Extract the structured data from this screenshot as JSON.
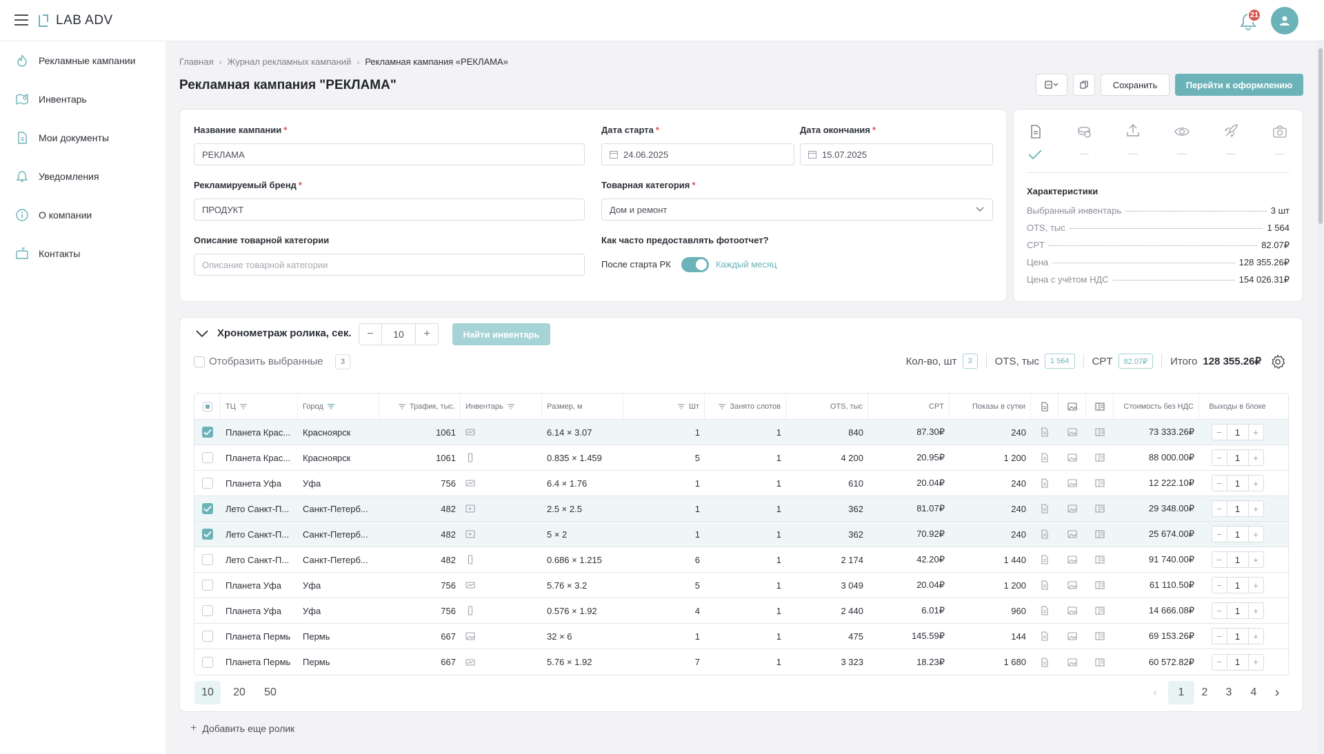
{
  "app": {
    "logo_text": "LAB ADV",
    "notifications_count": "21",
    "accent": "#6bb3b8"
  },
  "sidebar": {
    "items": [
      {
        "label": "Рекламные кампании",
        "icon": "flame-icon"
      },
      {
        "label": "Инвентарь",
        "icon": "map-icon"
      },
      {
        "label": "Мои документы",
        "icon": "document-icon"
      },
      {
        "label": "Уведомления",
        "icon": "bell-icon"
      },
      {
        "label": "О компании",
        "icon": "info-icon"
      },
      {
        "label": "Контакты",
        "icon": "mailbox-icon"
      }
    ]
  },
  "breadcrumb": [
    "Главная",
    "Журнал рекламных кампаний",
    "Рекламная кампания «РЕКЛАМА»"
  ],
  "page_title": "Рекламная кампания \"РЕКЛАМА\"",
  "toolbar": {
    "save_label": "Сохранить",
    "proceed_label": "Перейти к оформлению"
  },
  "form": {
    "campaign_name_label": "Название кампании",
    "campaign_name_value": "РЕКЛАМА",
    "start_label": "Дата старта",
    "start_value": "24.06.2025",
    "end_label": "Дата окончания",
    "end_value": "15.07.2025",
    "brand_label": "Рекламируемый бренд",
    "brand_value": "ПРОДУКТ",
    "category_label": "Товарная категория",
    "category_value": "Дом и ремонт",
    "desc_label": "Описание товарной категории",
    "desc_placeholder": "Описание товарной категории",
    "photo_question": "Как часто предоставлять фотоотчет?",
    "toggle_off_label": "После старта РК",
    "toggle_on_label": "Каждый месяц",
    "required_mark": "*"
  },
  "steps": [
    {
      "icon": "document-icon",
      "done": true,
      "mark": "✓"
    },
    {
      "icon": "coins-icon",
      "done": false,
      "mark": "—"
    },
    {
      "icon": "upload-icon",
      "done": false,
      "mark": "—"
    },
    {
      "icon": "eye-icon",
      "done": false,
      "mark": "—"
    },
    {
      "icon": "rocket-icon",
      "done": false,
      "mark": "—"
    },
    {
      "icon": "camera-icon",
      "done": false,
      "mark": "—"
    }
  ],
  "characteristics": {
    "title": "Характеристики",
    "rows": [
      {
        "key": "Выбранный инвентарь",
        "value": "3 шт"
      },
      {
        "key": "OTS, тыс",
        "value": "1 564"
      },
      {
        "key": "CPT",
        "value": "82.07₽"
      },
      {
        "key": "Цена",
        "value": "128 355.26₽"
      },
      {
        "key": "Цена с учётом НДС",
        "value": "154 026.31₽"
      }
    ]
  },
  "section": {
    "title": "Хронометраж ролика, сек.",
    "duration": "10",
    "find_label": "Найти инвентарь",
    "show_selected_label": "Отобразить выбранные",
    "show_selected_count": "3",
    "summary": {
      "qty_label": "Кол-во, шт",
      "qty_value": "3",
      "ots_label": "OTS, тыс",
      "ots_value": "1 564",
      "cpt_label": "CPT",
      "cpt_value": "82.07₽",
      "total_label": "Итого",
      "total_value": "128 355.26₽"
    }
  },
  "table": {
    "columns": [
      "ТЦ",
      "Город",
      "Трафик, тыс.",
      "Инвентарь",
      "Размер, м",
      "Шт",
      "Занято слотов",
      "OTS, тыс",
      "CPT",
      "Показы в сутки",
      "Стоимость без НДС",
      "Выходы в блоке"
    ],
    "rows": [
      {
        "selected": true,
        "mall": "Планета Крас...",
        "city": "Красноярск",
        "traffic": "1061",
        "inv": "screen-icon",
        "size": "6.14 × 3.07",
        "qty": "1",
        "slots": "1",
        "ots": "840",
        "cpt": "87.30₽",
        "shows": "240",
        "cost": "73 333.26₽",
        "outs": "1"
      },
      {
        "selected": false,
        "mall": "Планета Крас...",
        "city": "Красноярск",
        "traffic": "1061",
        "inv": "vertical-screen-icon",
        "size": "0.835 × 1.459",
        "qty": "5",
        "slots": "1",
        "ots": "4 200",
        "cpt": "20.95₽",
        "shows": "1 200",
        "cost": "88 000.00₽",
        "outs": "1"
      },
      {
        "selected": false,
        "mall": "Планета Уфа",
        "city": "Уфа",
        "traffic": "756",
        "inv": "screen-icon",
        "size": "6.4 × 1.76",
        "qty": "1",
        "slots": "1",
        "ots": "610",
        "cpt": "20.04₽",
        "shows": "240",
        "cost": "12 222.10₽",
        "outs": "1"
      },
      {
        "selected": true,
        "mall": "Лето Санкт-П...",
        "city": "Санкт-Петерб...",
        "traffic": "482",
        "inv": "video-icon",
        "size": "2.5 × 2.5",
        "qty": "1",
        "slots": "1",
        "ots": "362",
        "cpt": "81.07₽",
        "shows": "240",
        "cost": "29 348.00₽",
        "outs": "1"
      },
      {
        "selected": true,
        "mall": "Лето Санкт-П...",
        "city": "Санкт-Петерб...",
        "traffic": "482",
        "inv": "video-icon",
        "size": "5 × 2",
        "qty": "1",
        "slots": "1",
        "ots": "362",
        "cpt": "70.92₽",
        "shows": "240",
        "cost": "25 674.00₽",
        "outs": "1"
      },
      {
        "selected": false,
        "mall": "Лето Санкт-П...",
        "city": "Санкт-Петерб...",
        "traffic": "482",
        "inv": "vertical-screen-icon",
        "size": "0.686 × 1.215",
        "qty": "6",
        "slots": "1",
        "ots": "2 174",
        "cpt": "42.20₽",
        "shows": "1 440",
        "cost": "91 740.00₽",
        "outs": "1"
      },
      {
        "selected": false,
        "mall": "Планета Уфа",
        "city": "Уфа",
        "traffic": "756",
        "inv": "screen-icon",
        "size": "5.76 × 3.2",
        "qty": "5",
        "slots": "1",
        "ots": "3 049",
        "cpt": "20.04₽",
        "shows": "1 200",
        "cost": "61 110.50₽",
        "outs": "1"
      },
      {
        "selected": false,
        "mall": "Планета Уфа",
        "city": "Уфа",
        "traffic": "756",
        "inv": "vertical-screen-icon",
        "size": "0.576 × 1.92",
        "qty": "4",
        "slots": "1",
        "ots": "2 440",
        "cpt": "6.01₽",
        "shows": "960",
        "cost": "14 666.08₽",
        "outs": "1"
      },
      {
        "selected": false,
        "mall": "Планета Пермь",
        "city": "Пермь",
        "traffic": "667",
        "inv": "image-icon",
        "size": "32 × 6",
        "qty": "1",
        "slots": "1",
        "ots": "475",
        "cpt": "145.59₽",
        "shows": "144",
        "cost": "69 153.26₽",
        "outs": "1"
      },
      {
        "selected": false,
        "mall": "Планета Пермь",
        "city": "Пермь",
        "traffic": "667",
        "inv": "screen-icon",
        "size": "5.76 × 1.92",
        "qty": "7",
        "slots": "1",
        "ots": "3 323",
        "cpt": "18.23₽",
        "shows": "1 680",
        "cost": "60 572.82₽",
        "outs": "1"
      }
    ]
  },
  "pagination": {
    "page_sizes": [
      "10",
      "20",
      "50"
    ],
    "page_size_active": "10",
    "pages": [
      "1",
      "2",
      "3",
      "4"
    ],
    "current": "1"
  },
  "add_video_label": "Добавить еще ролик"
}
